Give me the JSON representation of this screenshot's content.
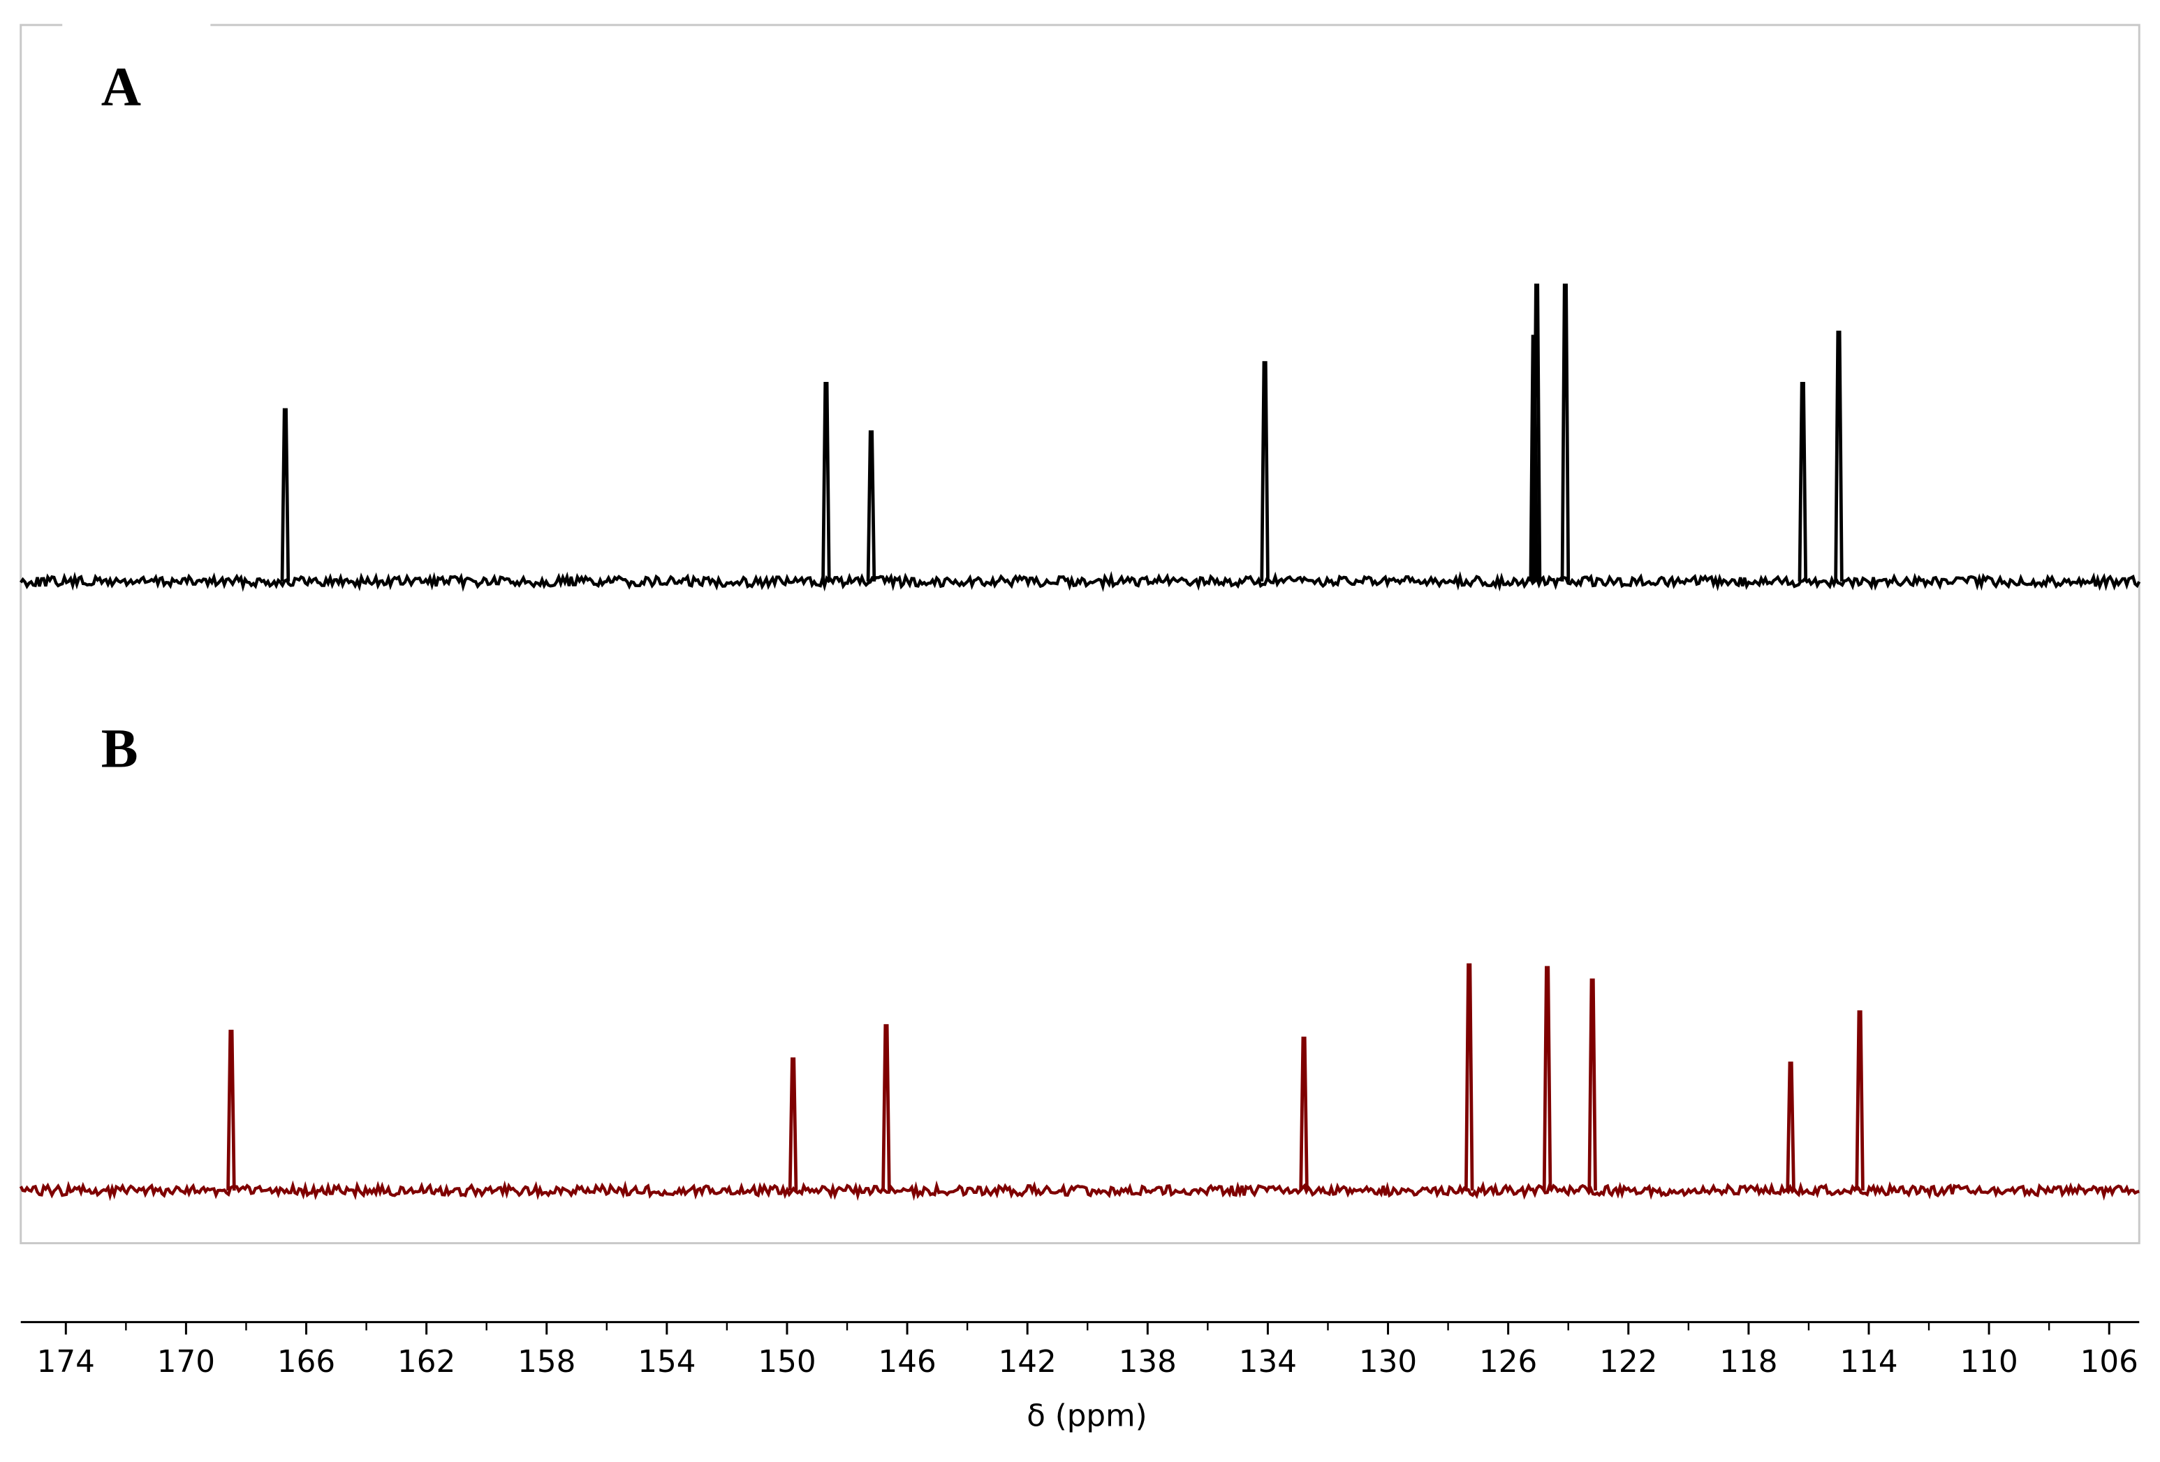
{
  "chart_data": {
    "type": "spectrum",
    "xlabel": "δ (ppm)",
    "xlim": [
      175.5,
      105
    ],
    "xticks": [
      174,
      170,
      166,
      162,
      158,
      154,
      150,
      146,
      142,
      138,
      134,
      130,
      126,
      122,
      118,
      114,
      110,
      106
    ],
    "xminorticks": [
      172,
      168,
      164,
      160,
      156,
      152,
      148,
      144,
      140,
      136,
      132,
      128,
      124,
      120,
      116,
      112,
      108
    ],
    "series": [
      {
        "name": "A",
        "color": "#000000",
        "x": [
          166.7,
          148.7,
          147.2,
          134.1,
          125.15,
          125.05,
          124.1,
          116.2,
          115.0
        ],
        "values": [
          124,
          143,
          108,
          158,
          177,
          214,
          214,
          143,
          180
        ]
      },
      {
        "name": "B",
        "color": "#7f0000",
        "x": [
          168.5,
          149.8,
          146.7,
          132.8,
          127.3,
          124.7,
          123.2,
          116.6,
          114.3
        ],
        "values": [
          115,
          95,
          119,
          110,
          163,
          161,
          152,
          92,
          129
        ]
      }
    ]
  }
}
